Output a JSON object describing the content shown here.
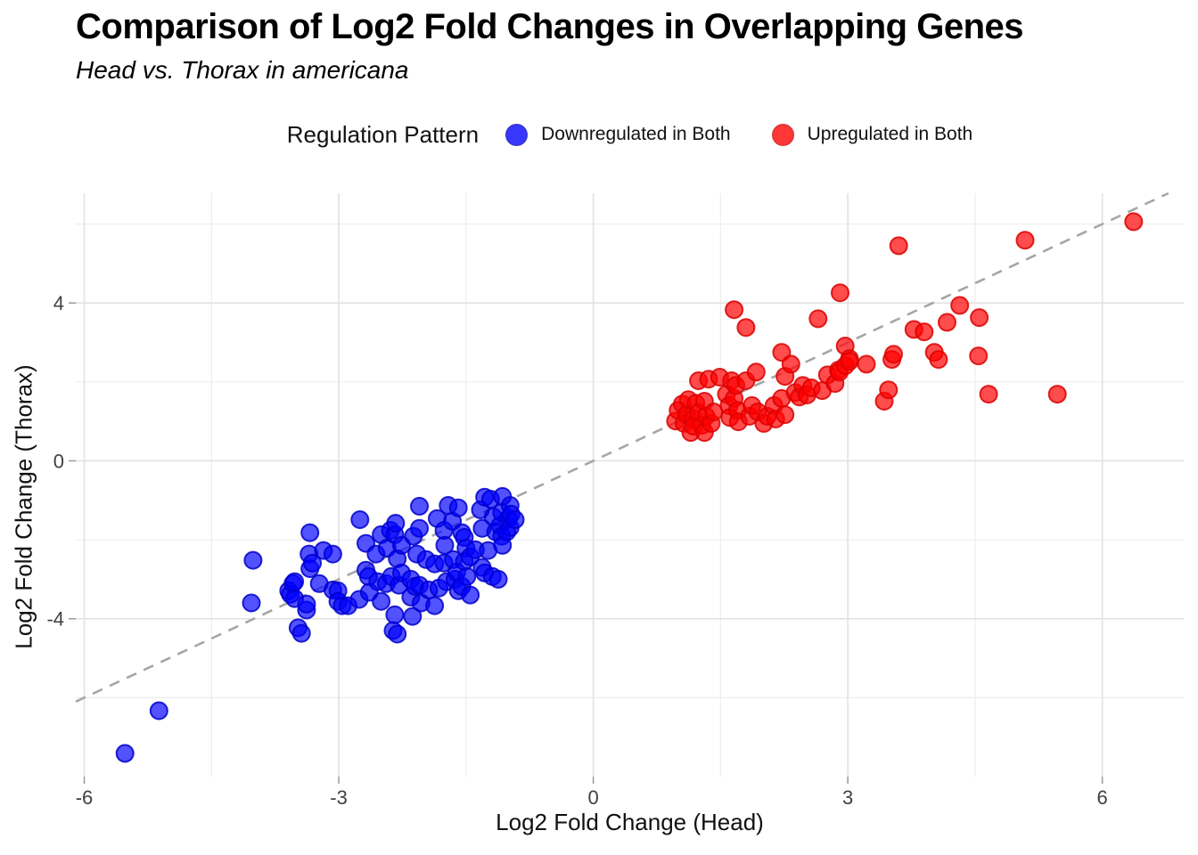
{
  "title": "Comparison of Log2 Fold Changes in Overlapping Genes",
  "subtitle": "Head vs. Thorax in americana",
  "legend": {
    "title": "Regulation Pattern",
    "items": [
      {
        "label": "Downregulated in Both",
        "color": "#0000FF"
      },
      {
        "label": "Upregulated in Both",
        "color": "#FF0000"
      }
    ]
  },
  "chart_data": {
    "type": "scatter",
    "title": "Comparison of Log2 Fold Changes in Overlapping Genes",
    "subtitle": "Head vs. Thorax in americana",
    "xlabel": "Log2 Fold Change (Head)",
    "ylabel": "Log2 Fold Change (Thorax)",
    "xlim": [
      -6.1,
      6.96
    ],
    "ylim": [
      -8.0,
      6.78
    ],
    "x_ticks": [
      -6,
      -3,
      0,
      3,
      6
    ],
    "y_ticks": [
      -4,
      0,
      4
    ],
    "x_minor_gridlines": [
      -4.5,
      -1.5,
      1.5,
      4.5
    ],
    "y_minor_gridlines": [
      -6,
      -2,
      2,
      6
    ],
    "grid": true,
    "legend_position": "top",
    "reference_line": {
      "style": "dashed",
      "slope": 1,
      "intercept": 0,
      "color": "#A6A6A6"
    },
    "series": [
      {
        "name": "Downregulated in Both",
        "color": "#0000FF",
        "stroke": "#0000CC",
        "fill_opacity": 0.68,
        "points": [
          [
            -5.52,
            -7.41
          ],
          [
            -5.12,
            -6.33
          ],
          [
            -4.03,
            -3.6
          ],
          [
            -4.01,
            -2.52
          ],
          [
            -3.59,
            -3.29
          ],
          [
            -3.57,
            -3.38
          ],
          [
            -3.54,
            -3.11
          ],
          [
            -3.52,
            -3.06
          ],
          [
            -3.52,
            -3.49
          ],
          [
            -3.48,
            -4.23
          ],
          [
            -3.44,
            -4.37
          ],
          [
            -3.38,
            -3.78
          ],
          [
            -3.38,
            -3.63
          ],
          [
            -3.35,
            -2.36
          ],
          [
            -3.34,
            -1.82
          ],
          [
            -3.34,
            -2.73
          ],
          [
            -3.31,
            -2.59
          ],
          [
            -3.23,
            -3.11
          ],
          [
            -3.18,
            -2.27
          ],
          [
            -3.07,
            -2.36
          ],
          [
            -3.07,
            -3.27
          ],
          [
            -3.01,
            -3.29
          ],
          [
            -3.01,
            -3.56
          ],
          [
            -2.96,
            -3.67
          ],
          [
            -2.89,
            -3.67
          ],
          [
            -2.76,
            -3.51
          ],
          [
            -2.75,
            -1.49
          ],
          [
            -2.68,
            -2.09
          ],
          [
            -2.68,
            -2.77
          ],
          [
            -2.65,
            -2.93
          ],
          [
            -2.64,
            -3.33
          ],
          [
            -2.56,
            -2.36
          ],
          [
            -2.54,
            -3.06
          ],
          [
            -2.5,
            -1.87
          ],
          [
            -2.5,
            -3.56
          ],
          [
            -2.44,
            -3.11
          ],
          [
            -2.43,
            -2.21
          ],
          [
            -2.39,
            -1.76
          ],
          [
            -2.38,
            -2.93
          ],
          [
            -2.36,
            -4.3
          ],
          [
            -2.34,
            -1.87
          ],
          [
            -2.34,
            -3.9
          ],
          [
            -2.33,
            -1.58
          ],
          [
            -2.31,
            -2.48
          ],
          [
            -2.31,
            -4.39
          ],
          [
            -2.29,
            -3.15
          ],
          [
            -2.26,
            -2.84
          ],
          [
            -2.26,
            -2.14
          ],
          [
            -2.15,
            -3.0
          ],
          [
            -2.15,
            -3.45
          ],
          [
            -2.13,
            -3.94
          ],
          [
            -2.12,
            -1.91
          ],
          [
            -2.1,
            -3.18
          ],
          [
            -2.08,
            -2.36
          ],
          [
            -2.05,
            -1.15
          ],
          [
            -2.05,
            -1.71
          ],
          [
            -2.05,
            -3.15
          ],
          [
            -2.03,
            -3.6
          ],
          [
            -1.97,
            -2.5
          ],
          [
            -1.94,
            -3.27
          ],
          [
            -1.87,
            -2.61
          ],
          [
            -1.87,
            -3.67
          ],
          [
            -1.84,
            -1.46
          ],
          [
            -1.82,
            -3.22
          ],
          [
            -1.76,
            -1.76
          ],
          [
            -1.76,
            -2.59
          ],
          [
            -1.75,
            -2.14
          ],
          [
            -1.73,
            -3.06
          ],
          [
            -1.71,
            -1.13
          ],
          [
            -1.66,
            -1.53
          ],
          [
            -1.65,
            -2.5
          ],
          [
            -1.63,
            -3.0
          ],
          [
            -1.61,
            -2.82
          ],
          [
            -1.59,
            -1.19
          ],
          [
            -1.59,
            -3.29
          ],
          [
            -1.55,
            -1.82
          ],
          [
            -1.55,
            -3.18
          ],
          [
            -1.52,
            -1.94
          ],
          [
            -1.52,
            -2.55
          ],
          [
            -1.5,
            -2.21
          ],
          [
            -1.49,
            -2.93
          ],
          [
            -1.45,
            -2.43
          ],
          [
            -1.45,
            -3.4
          ],
          [
            -1.39,
            -2.25
          ],
          [
            -1.33,
            -1.24
          ],
          [
            -1.31,
            -1.71
          ],
          [
            -1.31,
            -2.7
          ],
          [
            -1.28,
            -0.92
          ],
          [
            -1.28,
            -2.84
          ],
          [
            -1.24,
            -2.27
          ],
          [
            -1.21,
            -0.97
          ],
          [
            -1.19,
            -2.93
          ],
          [
            -1.18,
            -1.42
          ],
          [
            -1.15,
            -1.8
          ],
          [
            -1.12,
            -3.0
          ],
          [
            -1.1,
            -1.64
          ],
          [
            -1.08,
            -1.31
          ],
          [
            -1.08,
            -1.91
          ],
          [
            -1.07,
            -0.9
          ],
          [
            -1.07,
            -2.14
          ],
          [
            -1.02,
            -1.8
          ],
          [
            -1.0,
            -1.46
          ],
          [
            -0.98,
            -1.13
          ],
          [
            -0.98,
            -1.69
          ],
          [
            -0.97,
            -1.35
          ],
          [
            -0.92,
            -1.49
          ]
        ]
      },
      {
        "name": "Upregulated in Both",
        "color": "#FF0000",
        "stroke": "#DC0000",
        "fill_opacity": 0.7,
        "points": [
          [
            0.97,
            1.01
          ],
          [
            1.0,
            1.28
          ],
          [
            1.05,
            1.44
          ],
          [
            1.07,
            0.95
          ],
          [
            1.1,
            1.17
          ],
          [
            1.12,
            1.55
          ],
          [
            1.15,
            0.72
          ],
          [
            1.18,
            1.06
          ],
          [
            1.18,
            0.88
          ],
          [
            1.21,
            1.46
          ],
          [
            1.24,
            2.03
          ],
          [
            1.24,
            1.22
          ],
          [
            1.28,
            0.9
          ],
          [
            1.31,
            1.51
          ],
          [
            1.31,
            0.72
          ],
          [
            1.33,
            1.13
          ],
          [
            1.36,
            2.07
          ],
          [
            1.39,
            0.95
          ],
          [
            1.42,
            1.24
          ],
          [
            1.49,
            2.12
          ],
          [
            1.57,
            1.69
          ],
          [
            1.6,
            1.4
          ],
          [
            1.61,
            1.1
          ],
          [
            1.63,
            2.03
          ],
          [
            1.66,
            3.83
          ],
          [
            1.66,
            1.58
          ],
          [
            1.68,
            1.91
          ],
          [
            1.7,
            1.28
          ],
          [
            1.71,
            0.99
          ],
          [
            1.8,
            3.38
          ],
          [
            1.8,
            2.03
          ],
          [
            1.84,
            1.13
          ],
          [
            1.87,
            1.4
          ],
          [
            1.92,
            2.25
          ],
          [
            1.94,
            1.24
          ],
          [
            2.01,
            0.95
          ],
          [
            2.05,
            1.13
          ],
          [
            2.13,
            1.4
          ],
          [
            2.15,
            1.06
          ],
          [
            2.22,
            2.75
          ],
          [
            2.22,
            1.58
          ],
          [
            2.26,
            2.14
          ],
          [
            2.26,
            1.17
          ],
          [
            2.33,
            2.45
          ],
          [
            2.38,
            1.73
          ],
          [
            2.43,
            1.62
          ],
          [
            2.47,
            1.91
          ],
          [
            2.52,
            1.67
          ],
          [
            2.57,
            1.85
          ],
          [
            2.65,
            3.6
          ],
          [
            2.7,
            1.78
          ],
          [
            2.76,
            2.18
          ],
          [
            2.85,
            1.96
          ],
          [
            2.89,
            2.3
          ],
          [
            2.9,
            2.25
          ],
          [
            2.91,
            4.26
          ],
          [
            2.97,
            2.41
          ],
          [
            2.97,
            2.91
          ],
          [
            3.02,
            2.59
          ],
          [
            3.02,
            2.52
          ],
          [
            3.22,
            2.45
          ],
          [
            3.43,
            1.51
          ],
          [
            3.48,
            1.8
          ],
          [
            3.52,
            2.57
          ],
          [
            3.54,
            2.7
          ],
          [
            3.6,
            5.45
          ],
          [
            3.78,
            3.33
          ],
          [
            3.9,
            3.27
          ],
          [
            4.02,
            2.75
          ],
          [
            4.07,
            2.57
          ],
          [
            4.17,
            3.51
          ],
          [
            4.32,
            3.94
          ],
          [
            4.54,
            2.66
          ],
          [
            4.55,
            3.63
          ],
          [
            4.66,
            1.69
          ],
          [
            5.09,
            5.59
          ],
          [
            5.47,
            1.69
          ],
          [
            6.37,
            6.06
          ]
        ]
      }
    ]
  }
}
